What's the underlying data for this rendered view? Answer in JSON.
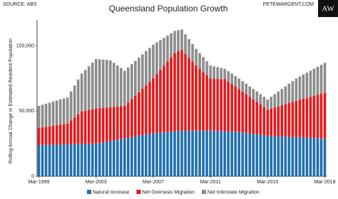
{
  "chart_data": {
    "type": "stacked_bar",
    "title": "Queensland Population Growth",
    "source": "SOURCE: ABS",
    "website": "PETEWARGENT.COM",
    "logo": "AW",
    "y_label": "Rolling Annual Change in Estimated Resident Population",
    "categories": [
      "Mar-1999",
      null,
      null,
      null,
      null,
      null,
      null,
      null,
      null,
      null,
      null,
      null,
      null,
      null,
      null,
      null,
      "Mar-2003",
      null,
      null,
      null,
      null,
      null,
      null,
      null,
      null,
      null,
      null,
      null,
      null,
      null,
      null,
      null,
      "Mar-2007",
      null,
      null,
      null,
      null,
      null,
      null,
      null,
      null,
      null,
      null,
      null,
      null,
      null,
      null,
      null,
      "Mar-2011",
      null,
      null,
      null,
      null,
      null,
      null,
      null,
      null,
      null,
      null,
      null,
      null,
      null,
      null,
      null,
      "Mar-2015",
      null,
      null,
      null,
      null,
      null,
      null,
      null,
      null,
      null,
      null,
      null,
      null,
      null,
      null,
      null,
      "Mar-2019"
    ],
    "series": [
      {
        "name": "Natural Increase",
        "color": "#1f6fae",
        "values": [
          24000,
          24100,
          24100,
          24200,
          24300,
          24300,
          24400,
          24400,
          24500,
          24600,
          24600,
          24700,
          24800,
          24800,
          24900,
          24900,
          25000,
          25500,
          26000,
          26500,
          27000,
          27500,
          28000,
          28500,
          29000,
          29500,
          30000,
          30500,
          31000,
          31500,
          32000,
          32500,
          33000,
          33300,
          33500,
          33800,
          34000,
          34300,
          34500,
          34800,
          35000,
          35000,
          35000,
          35000,
          35000,
          35000,
          35000,
          35000,
          35000,
          34900,
          34800,
          34600,
          34500,
          34400,
          34300,
          34100,
          34000,
          33600,
          33300,
          32900,
          32500,
          32100,
          31800,
          31400,
          31000,
          30900,
          30800,
          30600,
          30500,
          30400,
          30300,
          30100,
          30000,
          29900,
          29800,
          29600,
          29500,
          29400,
          29300,
          29100,
          29000
        ]
      },
      {
        "name": "Net Overseas Migration",
        "color": "#e3191c",
        "values": [
          13000,
          13400,
          13800,
          14100,
          14500,
          14900,
          15300,
          15600,
          16000,
          18300,
          20500,
          22800,
          25000,
          25500,
          26000,
          26500,
          27000,
          26800,
          26500,
          26300,
          26000,
          25800,
          25500,
          25300,
          25000,
          27100,
          29300,
          31400,
          33500,
          35600,
          37800,
          39900,
          42000,
          45000,
          48000,
          51000,
          54000,
          57000,
          60000,
          61000,
          62000,
          59000,
          56000,
          53000,
          50000,
          47500,
          45000,
          42500,
          40000,
          40000,
          40000,
          40000,
          40000,
          38300,
          36500,
          34800,
          33000,
          31400,
          29800,
          28100,
          26500,
          24900,
          23300,
          21600,
          20000,
          21000,
          22000,
          23000,
          24000,
          25000,
          26000,
          27000,
          28000,
          28900,
          29800,
          30600,
          31500,
          32400,
          33300,
          34100,
          35000
        ]
      },
      {
        "name": "Net Interstate Migration",
        "color": "#8c8c8c",
        "values": [
          17000,
          17400,
          17800,
          18100,
          18500,
          18900,
          19300,
          19600,
          20000,
          22300,
          24500,
          26800,
          29000,
          31300,
          33500,
          35800,
          38000,
          37500,
          37000,
          36500,
          36000,
          33800,
          31500,
          29300,
          27000,
          26900,
          26800,
          26600,
          26500,
          26400,
          26300,
          26100,
          26000,
          24500,
          23000,
          21500,
          20000,
          18500,
          17000,
          16300,
          15600,
          14900,
          14200,
          13500,
          12800,
          12100,
          11400,
          10700,
          10000,
          9500,
          9000,
          8500,
          8000,
          8000,
          8000,
          8000,
          8000,
          8000,
          8000,
          8000,
          8000,
          8000,
          8000,
          8000,
          8000,
          9100,
          10300,
          11400,
          12500,
          13600,
          14800,
          15900,
          17000,
          17800,
          18500,
          19300,
          20000,
          20800,
          21500,
          22300,
          23000
        ]
      }
    ],
    "ylim": [
      0,
      120000
    ],
    "yticks": [
      0,
      {
        "value": 50000,
        "label": "50,000"
      },
      {
        "value": 100000,
        "label": "100,000"
      }
    ],
    "grid": false,
    "legend": "bottom"
  }
}
